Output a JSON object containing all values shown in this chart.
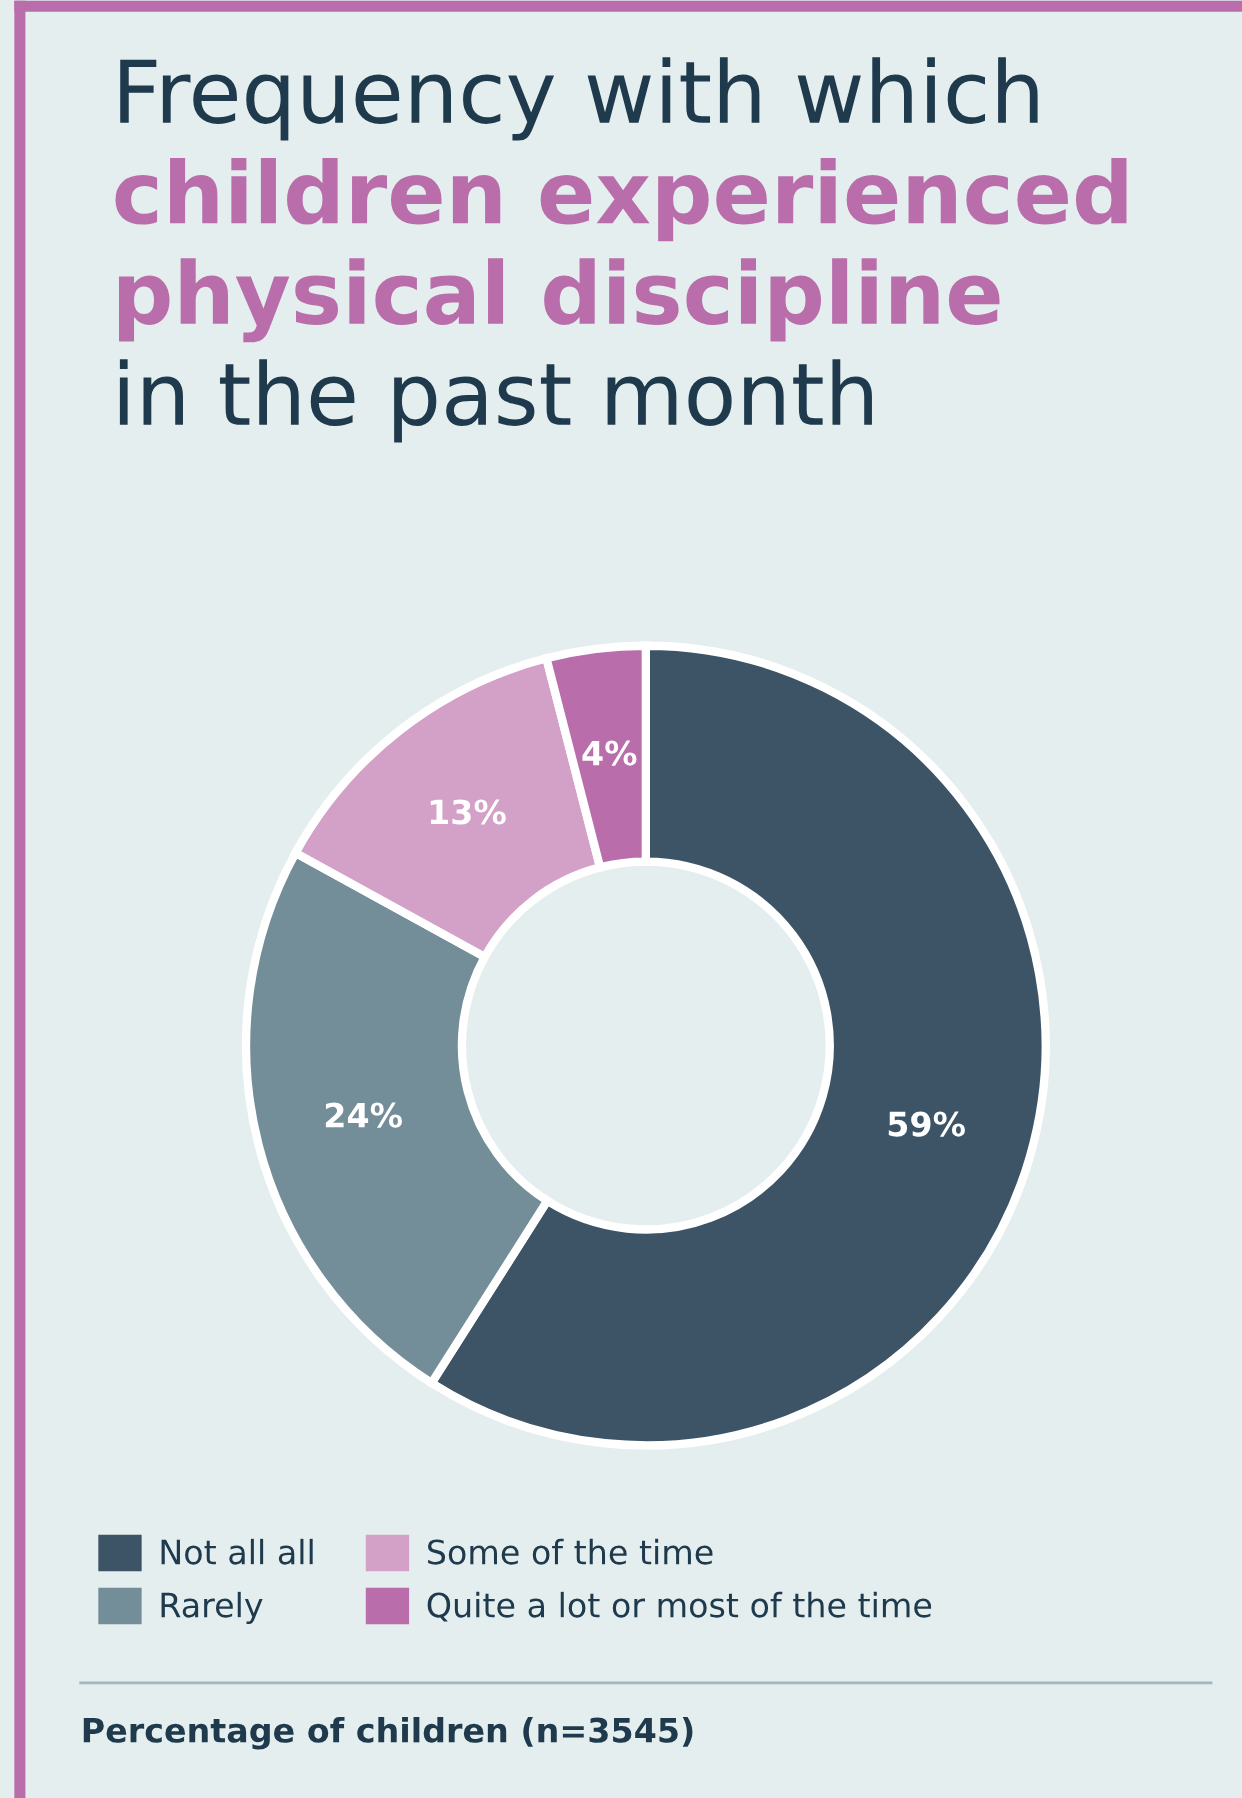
{
  "chart_data": {
    "type": "donut",
    "title": "Frequency with which children experienced physical discipline in the past month",
    "categories": [
      "Not all all",
      "Rarely",
      "Some of the time",
      "Quite a lot or most of the time"
    ],
    "values": [
      59,
      24,
      13,
      4
    ],
    "value_labels": [
      "59%",
      "24%",
      "13%",
      "4%"
    ],
    "colors": [
      "#3d5467",
      "#748e99",
      "#d3a0c8",
      "#b96eab"
    ],
    "legend": "bottom",
    "annotations": [
      "Percentage of children (n=3545)"
    ]
  }
}
